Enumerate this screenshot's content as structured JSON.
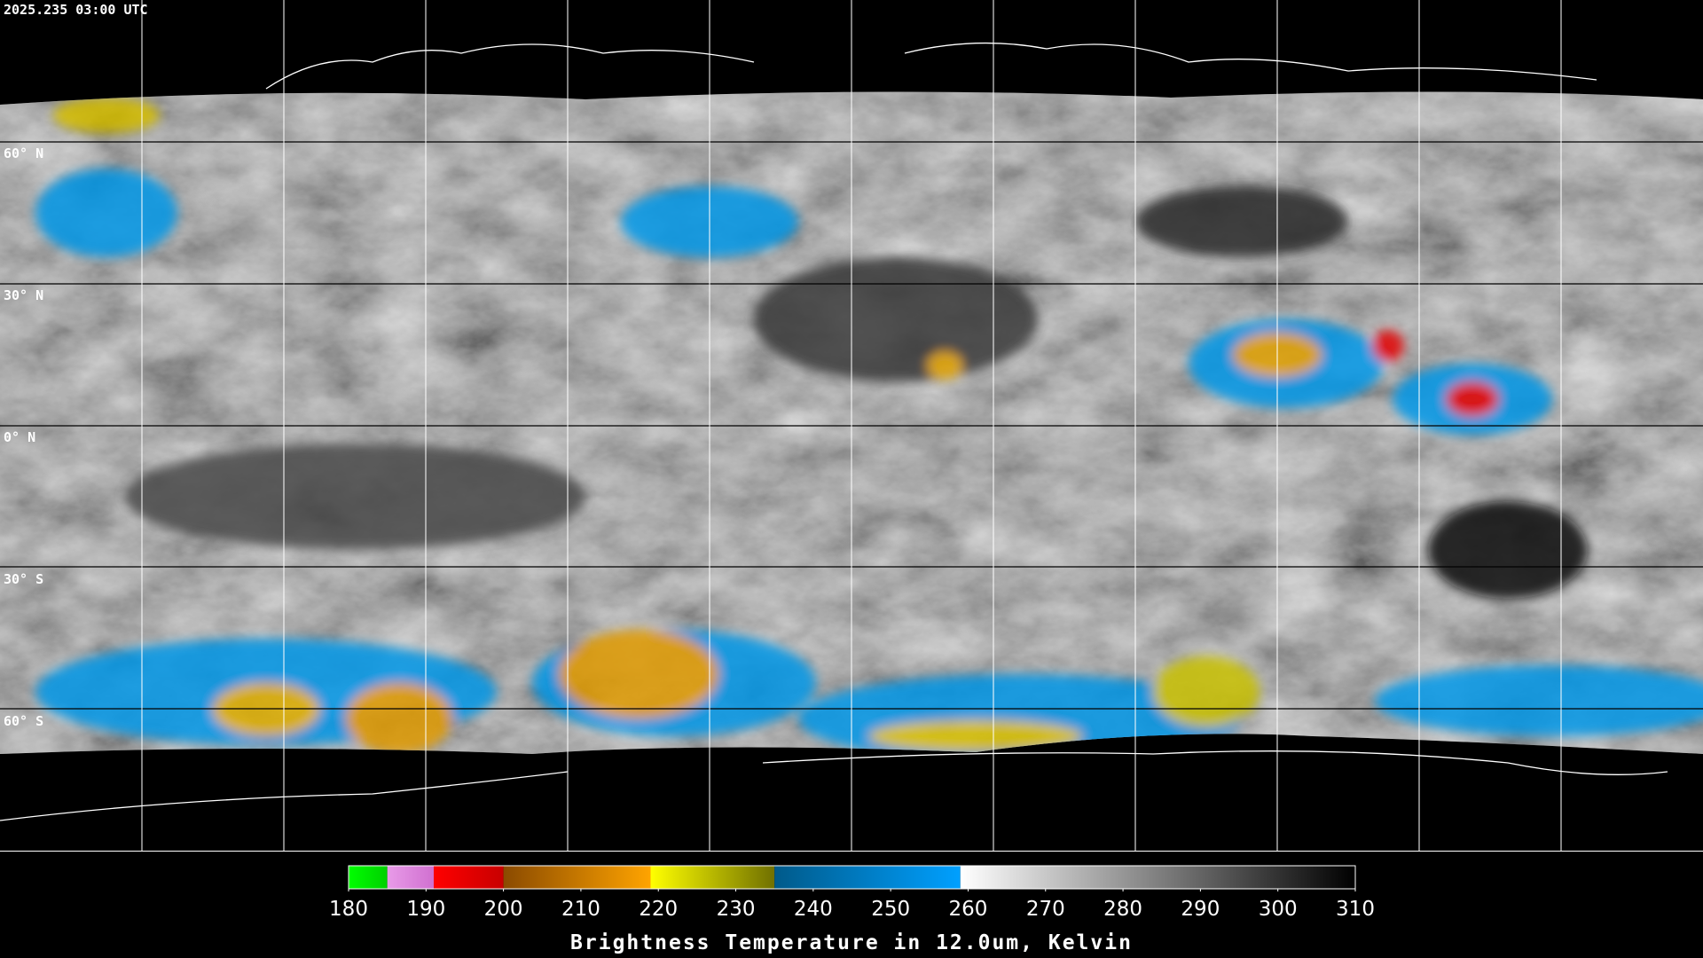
{
  "header": {
    "timestamp": "2025.235 03:00 UTC"
  },
  "map": {
    "lat_labels": [
      "60° N",
      "30° N",
      "0° N",
      "30° S",
      "60° S"
    ]
  },
  "colorbar": {
    "label": "Brightness Temperature in 12.0um, Kelvin",
    "range": [
      180,
      310
    ],
    "ticks": [
      180,
      190,
      200,
      210,
      220,
      230,
      240,
      250,
      260,
      270,
      280,
      290,
      300,
      310
    ],
    "segments": [
      {
        "from": 180,
        "to": 185,
        "colors": [
          "#00ff00",
          "#00d000"
        ]
      },
      {
        "from": 185,
        "to": 191,
        "colors": [
          "#e89be8",
          "#d070d0"
        ]
      },
      {
        "from": 191,
        "to": 200,
        "colors": [
          "#ff0000",
          "#c80000"
        ]
      },
      {
        "from": 200,
        "to": 219,
        "colors": [
          "#8a4a00",
          "#ffa400"
        ]
      },
      {
        "from": 219,
        "to": 235,
        "colors": [
          "#ffff00",
          "#707000"
        ]
      },
      {
        "from": 235,
        "to": 259,
        "colors": [
          "#005a8a",
          "#00a0ff"
        ]
      },
      {
        "from": 259,
        "to": 310,
        "colors": [
          "#ffffff",
          "#000000"
        ]
      }
    ]
  }
}
